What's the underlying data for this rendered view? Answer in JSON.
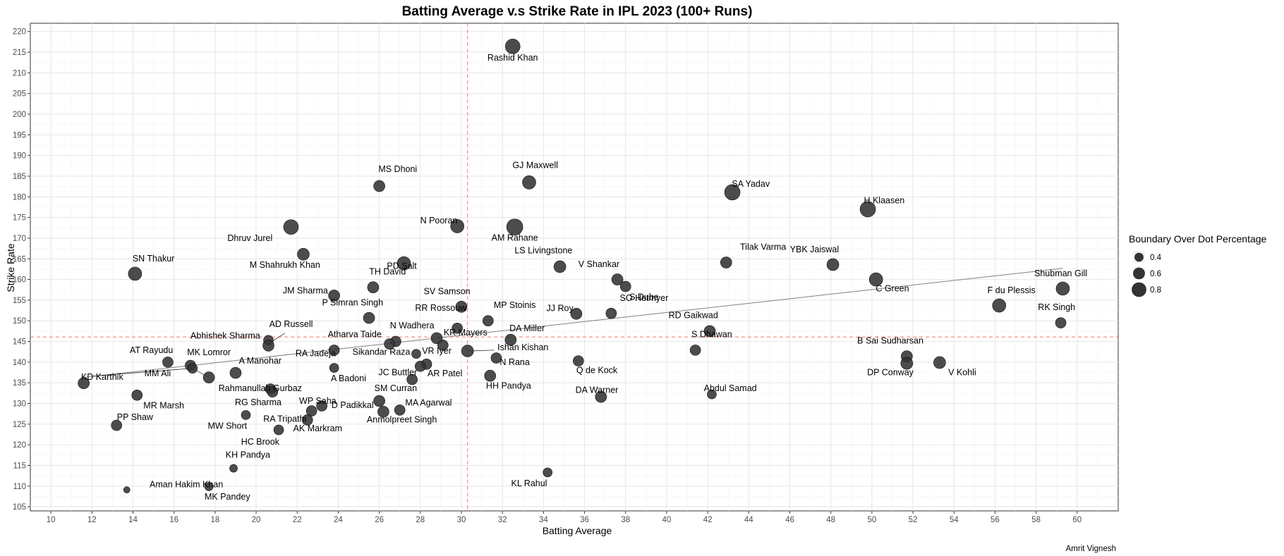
{
  "chart_data": {
    "type": "scatter",
    "title": "Batting Average v.s Strike Rate in IPL 2023 (100+ Runs)",
    "xlabel": "Batting Average",
    "ylabel": "Strike Rate",
    "xlim": [
      9,
      62
    ],
    "ylim": [
      104,
      222
    ],
    "xticks": [
      "10",
      "12",
      "14",
      "16",
      "18",
      "20",
      "22",
      "24",
      "26",
      "28",
      "30",
      "32",
      "34",
      "36",
      "38",
      "40",
      "42",
      "44",
      "46",
      "48",
      "50",
      "52",
      "54",
      "56",
      "58",
      "60"
    ],
    "yticks": [
      "105",
      "110",
      "115",
      "120",
      "125",
      "130",
      "135",
      "140",
      "145",
      "150",
      "155",
      "160",
      "165",
      "170",
      "175",
      "180",
      "185",
      "190",
      "195",
      "200",
      "205",
      "210",
      "215",
      "220"
    ],
    "grid": true,
    "reference_lines": {
      "x": 30.3,
      "y": 146.1,
      "color": "#f8766d"
    },
    "trend_line": {
      "x": [
        11.6,
        59.3
      ],
      "y": [
        136.3,
        162.7
      ],
      "color": "#808080"
    },
    "point_color": "#333333",
    "size_legend": {
      "title": "Boundary Over Dot Percentage",
      "placement": "right",
      "entries": [
        {
          "label": "0.4",
          "value": 0.4
        },
        {
          "label": "0.6",
          "value": 0.6
        },
        {
          "label": "0.8",
          "value": 0.8
        }
      ]
    },
    "points": [
      {
        "name": "Rashid Khan",
        "x": 32.5,
        "y": 216.4,
        "size": 0.85
      },
      {
        "name": "MS Dhoni",
        "x": 26.0,
        "y": 182.6,
        "size": 0.6
      },
      {
        "name": "GJ Maxwell",
        "x": 33.3,
        "y": 183.5,
        "size": 0.75
      },
      {
        "name": "SA Yadav",
        "x": 43.2,
        "y": 181.1,
        "size": 0.9
      },
      {
        "name": "H Klaasen",
        "x": 49.8,
        "y": 177.0,
        "size": 0.9
      },
      {
        "name": "Dhruv Jurel",
        "x": 21.7,
        "y": 172.7,
        "size": 0.85
      },
      {
        "name": "N Pooran",
        "x": 29.8,
        "y": 172.9,
        "size": 0.75
      },
      {
        "name": "AM Rahane",
        "x": 32.6,
        "y": 172.7,
        "size": 0.95
      },
      {
        "name": "M Shahrukh Khan",
        "x": 22.3,
        "y": 166.1,
        "size": 0.65
      },
      {
        "name": "PD Salt",
        "x": 27.2,
        "y": 163.9,
        "size": 0.75
      },
      {
        "name": "LS Livingstone",
        "x": 34.8,
        "y": 163.1,
        "size": 0.65
      },
      {
        "name": "Tilak Varma",
        "x": 42.9,
        "y": 164.1,
        "size": 0.6
      },
      {
        "name": "YBK Jaiswal",
        "x": 48.1,
        "y": 163.6,
        "size": 0.65
      },
      {
        "name": "SN Thakur",
        "x": 14.1,
        "y": 161.4,
        "size": 0.75
      },
      {
        "name": "V Shankar",
        "x": 37.6,
        "y": 160.0,
        "size": 0.6
      },
      {
        "name": "C Green",
        "x": 50.2,
        "y": 160.0,
        "size": 0.75
      },
      {
        "name": "TH David",
        "x": 25.7,
        "y": 158.1,
        "size": 0.6
      },
      {
        "name": "S Dube",
        "x": 38.0,
        "y": 158.3,
        "size": 0.55
      },
      {
        "name": "Shubman Gill",
        "x": 59.3,
        "y": 157.8,
        "size": 0.75
      },
      {
        "name": "JM Sharma",
        "x": 23.8,
        "y": 156.1,
        "size": 0.6
      },
      {
        "name": "SV Samson",
        "x": 30.0,
        "y": 153.4,
        "size": 0.6
      },
      {
        "name": "F du Plessis",
        "x": 56.2,
        "y": 153.7,
        "size": 0.75
      },
      {
        "name": "SO Hetmyer",
        "x": 37.3,
        "y": 151.8,
        "size": 0.55
      },
      {
        "name": "JJ Roy",
        "x": 35.6,
        "y": 151.7,
        "size": 0.6
      },
      {
        "name": "P Simran Singh",
        "x": 25.5,
        "y": 150.7,
        "size": 0.6
      },
      {
        "name": "MP Stoinis",
        "x": 31.3,
        "y": 150.0,
        "size": 0.55
      },
      {
        "name": "RK Singh",
        "x": 59.2,
        "y": 149.5,
        "size": 0.55
      },
      {
        "name": "RR Rossouw",
        "x": 29.8,
        "y": 148.2,
        "size": 0.55
      },
      {
        "name": "RD Gaikwad",
        "x": 42.1,
        "y": 147.5,
        "size": 0.6
      },
      {
        "name": "AD Russell",
        "x": 20.6,
        "y": 145.3,
        "size": 0.5
      },
      {
        "name": "N Wadhera",
        "x": 26.8,
        "y": 145.0,
        "size": 0.55
      },
      {
        "name": "KR Mayers",
        "x": 28.8,
        "y": 145.8,
        "size": 0.6
      },
      {
        "name": "DA Miller",
        "x": 32.4,
        "y": 145.4,
        "size": 0.6
      },
      {
        "name": "Abhishek Sharma",
        "x": 20.6,
        "y": 144.0,
        "size": 0.6
      },
      {
        "name": "Atharva Taide",
        "x": 26.5,
        "y": 144.4,
        "size": 0.55
      },
      {
        "name": "Sikandar Raza",
        "x": 29.1,
        "y": 144.1,
        "size": 0.55
      },
      {
        "name": "Ishan Kishan",
        "x": 30.3,
        "y": 142.7,
        "size": 0.65
      },
      {
        "name": "S Dhawan",
        "x": 41.4,
        "y": 142.9,
        "size": 0.55
      },
      {
        "name": "RA Jadeja",
        "x": 23.8,
        "y": 142.9,
        "size": 0.55
      },
      {
        "name": "VR Iyer",
        "x": 27.8,
        "y": 142.0,
        "size": 0.45
      },
      {
        "name": "B Sai Sudharsan",
        "x": 51.7,
        "y": 141.4,
        "size": 0.6
      },
      {
        "name": "Ishan Kishan link",
        "x": 31.7,
        "y": 141.0,
        "size": 0.55
      },
      {
        "name": "Q de Kock",
        "x": 35.7,
        "y": 140.3,
        "size": 0.55
      },
      {
        "name": "AT Rayudu",
        "x": 15.7,
        "y": 140.0,
        "size": 0.55
      },
      {
        "name": "V Kohli",
        "x": 53.3,
        "y": 139.9,
        "size": 0.65
      },
      {
        "name": "DP Conway",
        "x": 51.7,
        "y": 139.7,
        "size": 0.65
      },
      {
        "name": "AR Patel",
        "x": 28.3,
        "y": 139.5,
        "size": 0.55
      },
      {
        "name": "MK Lomror",
        "x": 16.8,
        "y": 139.2,
        "size": 0.55
      },
      {
        "name": "JC Buttler",
        "x": 28.0,
        "y": 139.0,
        "size": 0.55
      },
      {
        "name": "A Badoni",
        "x": 23.8,
        "y": 138.6,
        "size": 0.45
      },
      {
        "name": "MM Ali",
        "x": 16.9,
        "y": 138.5,
        "size": 0.5
      },
      {
        "name": "A Manohar",
        "x": 19.0,
        "y": 137.4,
        "size": 0.6
      },
      {
        "name": "N Rana",
        "x": 31.4,
        "y": 136.7,
        "size": 0.6
      },
      {
        "name": "Rahmanullah Gurbaz",
        "x": 17.7,
        "y": 136.3,
        "size": 0.6
      },
      {
        "name": "HH Pandya",
        "x": 27.6,
        "y": 135.8,
        "size": 0.55
      },
      {
        "name": "KD Karthik",
        "x": 11.6,
        "y": 134.9,
        "size": 0.6
      },
      {
        "name": "SM Curran",
        "x": 20.7,
        "y": 133.5,
        "size": 0.55
      },
      {
        "name": "RG Sharma",
        "x": 20.8,
        "y": 132.8,
        "size": 0.55
      },
      {
        "name": "Abdul Samad",
        "x": 42.2,
        "y": 132.2,
        "size": 0.45
      },
      {
        "name": "MR Marsh",
        "x": 14.2,
        "y": 132.0,
        "size": 0.55
      },
      {
        "name": "DA Warner",
        "x": 36.8,
        "y": 131.6,
        "size": 0.6
      },
      {
        "name": "WP Saha",
        "x": 26.0,
        "y": 130.6,
        "size": 0.6
      },
      {
        "name": "D Padikkal",
        "x": 23.2,
        "y": 129.4,
        "size": 0.55
      },
      {
        "name": "MA Agarwal",
        "x": 27.0,
        "y": 128.4,
        "size": 0.55
      },
      {
        "name": "RA Tripathi",
        "x": 22.7,
        "y": 128.2,
        "size": 0.55
      },
      {
        "name": "Anmolpreet Singh",
        "x": 26.2,
        "y": 128.0,
        "size": 0.6
      },
      {
        "name": "MW Short",
        "x": 19.5,
        "y": 127.2,
        "size": 0.45
      },
      {
        "name": "RA Tripathi 2",
        "x": 22.5,
        "y": 126.0,
        "size": 0.55
      },
      {
        "name": "PP Shaw",
        "x": 13.2,
        "y": 124.7,
        "size": 0.55
      },
      {
        "name": "AK Markram",
        "x": 21.1,
        "y": 123.6,
        "size": 0.5
      },
      {
        "name": "KH Pandya",
        "x": 18.9,
        "y": 114.3,
        "size": 0.35
      },
      {
        "name": "KL Rahul",
        "x": 34.2,
        "y": 113.3,
        "size": 0.45
      },
      {
        "name": "MK Pandey",
        "x": 17.7,
        "y": 109.9,
        "size": 0.4
      },
      {
        "name": "Aman Hakim Khan",
        "x": 13.7,
        "y": 109.1,
        "size": 0.25
      }
    ],
    "labels": [
      {
        "text": "Rashid Khan",
        "x": 32.5,
        "y": 213.0
      },
      {
        "text": "MS Dhoni",
        "x": 26.9,
        "y": 186.0
      },
      {
        "text": "GJ Maxwell",
        "x": 33.6,
        "y": 187.0
      },
      {
        "text": "SA Yadav",
        "x": 44.1,
        "y": 182.4
      },
      {
        "text": "H Klaasen",
        "x": 50.6,
        "y": 178.4
      },
      {
        "text": "N Pooran",
        "x": 28.9,
        "y": 173.6
      },
      {
        "text": "Dhruv Jurel",
        "x": 19.7,
        "y": 169.3
      },
      {
        "text": "AM Rahane",
        "x": 32.6,
        "y": 169.4
      },
      {
        "text": "M Shahrukh Khan",
        "x": 21.4,
        "y": 162.8
      },
      {
        "text": "PD Salt",
        "x": 27.1,
        "y": 162.6
      },
      {
        "text": "LS Livingstone",
        "x": 34.0,
        "y": 166.3
      },
      {
        "text": "Tilak Varma",
        "x": 44.7,
        "y": 167.2
      },
      {
        "text": "YBK Jaiswal",
        "x": 47.2,
        "y": 166.6
      },
      {
        "text": "SN Thakur",
        "x": 15.0,
        "y": 164.4
      },
      {
        "text": "V Shankar",
        "x": 36.7,
        "y": 163.0
      },
      {
        "text": "TH David",
        "x": 26.4,
        "y": 161.2
      },
      {
        "text": "C Green",
        "x": 51.0,
        "y": 157.1
      },
      {
        "text": "S Dube",
        "x": 38.9,
        "y": 155.1
      },
      {
        "text": "Shubman Gill",
        "x": 59.2,
        "y": 160.8
      },
      {
        "text": "JM Sharma",
        "x": 22.4,
        "y": 156.6
      },
      {
        "text": "SV Samson",
        "x": 29.3,
        "y": 156.4
      },
      {
        "text": "F du Plessis",
        "x": 56.8,
        "y": 156.7
      },
      {
        "text": "SO Hetmyer",
        "x": 38.9,
        "y": 154.8
      },
      {
        "text": "P Simran Singh",
        "x": 24.7,
        "y": 153.7
      },
      {
        "text": "MP Stoinis",
        "x": 32.6,
        "y": 153.1
      },
      {
        "text": "JJ Roy",
        "x": 34.8,
        "y": 152.3
      },
      {
        "text": "RR Rossouw",
        "x": 29.0,
        "y": 152.4
      },
      {
        "text": "RK Singh",
        "x": 59.0,
        "y": 152.6
      },
      {
        "text": "RD Gaikwad",
        "x": 41.3,
        "y": 150.6
      },
      {
        "text": "AD Russell",
        "x": 21.7,
        "y": 148.5
      },
      {
        "text": "N Wadhera",
        "x": 27.6,
        "y": 148.2
      },
      {
        "text": "DA Miller",
        "x": 33.2,
        "y": 147.5
      },
      {
        "text": "KR Mayers",
        "x": 30.2,
        "y": 146.5
      },
      {
        "text": "Abhishek Sharma",
        "x": 18.5,
        "y": 145.7
      },
      {
        "text": "Atharva Taide",
        "x": 24.8,
        "y": 146.0
      },
      {
        "text": "S Dhawan",
        "x": 42.2,
        "y": 146.0
      },
      {
        "text": "Ishan Kishan",
        "x": 33.0,
        "y": 142.9
      },
      {
        "text": "B Sai Sudharsan",
        "x": 50.9,
        "y": 144.5
      },
      {
        "text": "VR Iyer",
        "x": 28.8,
        "y": 142.0
      },
      {
        "text": "Sikandar Raza",
        "x": 26.1,
        "y": 141.8
      },
      {
        "text": "RA Jadeja",
        "x": 22.9,
        "y": 141.4
      },
      {
        "text": "AT Rayudu",
        "x": 14.9,
        "y": 142.2
      },
      {
        "text": "MK Lomror",
        "x": 17.7,
        "y": 141.7
      },
      {
        "text": "A Manohar",
        "x": 20.2,
        "y": 139.6
      },
      {
        "text": "N Rana",
        "x": 32.6,
        "y": 139.3
      },
      {
        "text": "Q de Kock",
        "x": 36.6,
        "y": 137.3
      },
      {
        "text": "DP Conway",
        "x": 50.9,
        "y": 136.8
      },
      {
        "text": "V Kohli",
        "x": 54.4,
        "y": 136.8
      },
      {
        "text": "AR Patel",
        "x": 29.2,
        "y": 136.6
      },
      {
        "text": "JC Buttler",
        "x": 26.9,
        "y": 136.8
      },
      {
        "text": "MM Ali",
        "x": 15.2,
        "y": 136.6
      },
      {
        "text": "A Badoni",
        "x": 24.5,
        "y": 135.4
      },
      {
        "text": "KD Karthik",
        "x": 12.5,
        "y": 135.7
      },
      {
        "text": "Rahmanullah Gurbaz",
        "x": 20.2,
        "y": 133.0
      },
      {
        "text": "HH Pandya",
        "x": 32.3,
        "y": 133.6
      },
      {
        "text": "SM Curran",
        "x": 26.8,
        "y": 133.0
      },
      {
        "text": "DA Warner",
        "x": 36.6,
        "y": 132.6
      },
      {
        "text": "Abdul Samad",
        "x": 43.1,
        "y": 133.0
      },
      {
        "text": "RG Sharma",
        "x": 20.1,
        "y": 129.6
      },
      {
        "text": "MR Marsh",
        "x": 15.5,
        "y": 128.8
      },
      {
        "text": "WP Saha",
        "x": 23.0,
        "y": 129.9
      },
      {
        "text": "MA Agarwal",
        "x": 28.4,
        "y": 129.5
      },
      {
        "text": "D Padikkal",
        "x": 24.7,
        "y": 128.9
      },
      {
        "text": "RA Tripathi",
        "x": 21.4,
        "y": 125.6
      },
      {
        "text": "Anmolpreet Singh",
        "x": 27.1,
        "y": 125.4
      },
      {
        "text": "PP Shaw",
        "x": 14.1,
        "y": 126.0
      },
      {
        "text": "MW Short",
        "x": 18.6,
        "y": 123.9
      },
      {
        "text": "AK Markram",
        "x": 23.0,
        "y": 123.3
      },
      {
        "text": "HC Brook",
        "x": 20.2,
        "y": 120.0
      },
      {
        "text": "KH Pandya",
        "x": 19.6,
        "y": 116.9
      },
      {
        "text": "KL Rahul",
        "x": 33.3,
        "y": 110.0
      },
      {
        "text": "Aman Hakim Khan",
        "x": 16.6,
        "y": 109.7
      },
      {
        "text": "MK Pandey",
        "x": 18.6,
        "y": 106.7
      }
    ],
    "connectors": [
      {
        "from": [
          20.7,
          144.8
        ],
        "to": [
          21.4,
          147.0
        ]
      },
      {
        "from": [
          30.3,
          142.7
        ],
        "to": [
          31.6,
          142.9
        ]
      },
      {
        "from": [
          16.9,
          138.5
        ],
        "to": [
          17.7,
          136.3
        ]
      },
      {
        "from": [
          16.9,
          138.5
        ],
        "to": [
          12.0,
          136.6
        ]
      }
    ],
    "caption": "Amrit Vignesh"
  }
}
